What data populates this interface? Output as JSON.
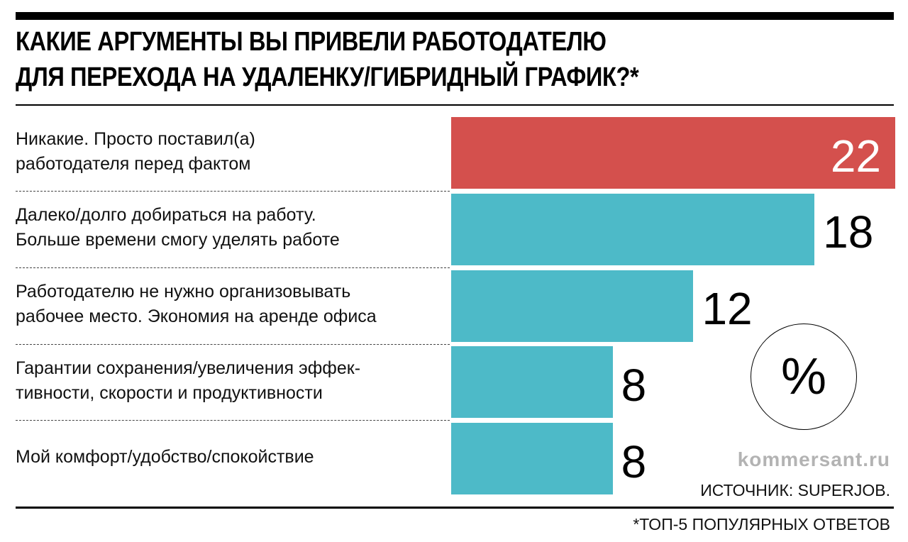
{
  "chart_data": {
    "type": "bar",
    "orientation": "horizontal",
    "title": "КАКИЕ АРГУМЕНТЫ ВЫ ПРИВЕЛИ РАБОТОДАТЕЛЮ ДЛЯ ПЕРЕХОДА НА УДАЛЕНКУ/ГИБРИДНЫЙ ГРАФИК?*",
    "title_lines": [
      "КАКИЕ АРГУМЕНТЫ ВЫ ПРИВЕЛИ РАБОТОДАТЕЛЮ",
      "ДЛЯ ПЕРЕХОДА НА УДАЛЕНКУ/ГИБРИДНЫЙ ГРАФИК?*"
    ],
    "unit": "%",
    "categories": [
      [
        "Никакие. Просто поставил(а)",
        "работодателя перед фактом"
      ],
      [
        "Далеко/долго добираться на работу.",
        "Больше времени смогу уделять работе"
      ],
      [
        "Работодателю не нужно организовывать",
        "рабочее место. Экономия на аренде офиса"
      ],
      [
        "Гарантии сохранения/увеличения эффек-",
        "тивности, скорости и продуктивности"
      ],
      [
        "Мой комфорт/удобство/спокойствие"
      ]
    ],
    "values": [
      22,
      18,
      12,
      8,
      8
    ],
    "value_labels": [
      "22",
      "18",
      "12",
      "8",
      "8"
    ],
    "colors": [
      "#d4504d",
      "#4dbac8",
      "#4dbac8",
      "#4dbac8",
      "#4dbac8"
    ],
    "xlim": [
      0,
      22
    ],
    "grid": false,
    "legend": "none"
  },
  "footer": {
    "site": "kommersant.ru",
    "source": "ИСТОЧНИК: SUPERJOB.",
    "footnote": "*ТОП-5 ПОПУЛЯРНЫХ ОТВЕТОВ"
  }
}
